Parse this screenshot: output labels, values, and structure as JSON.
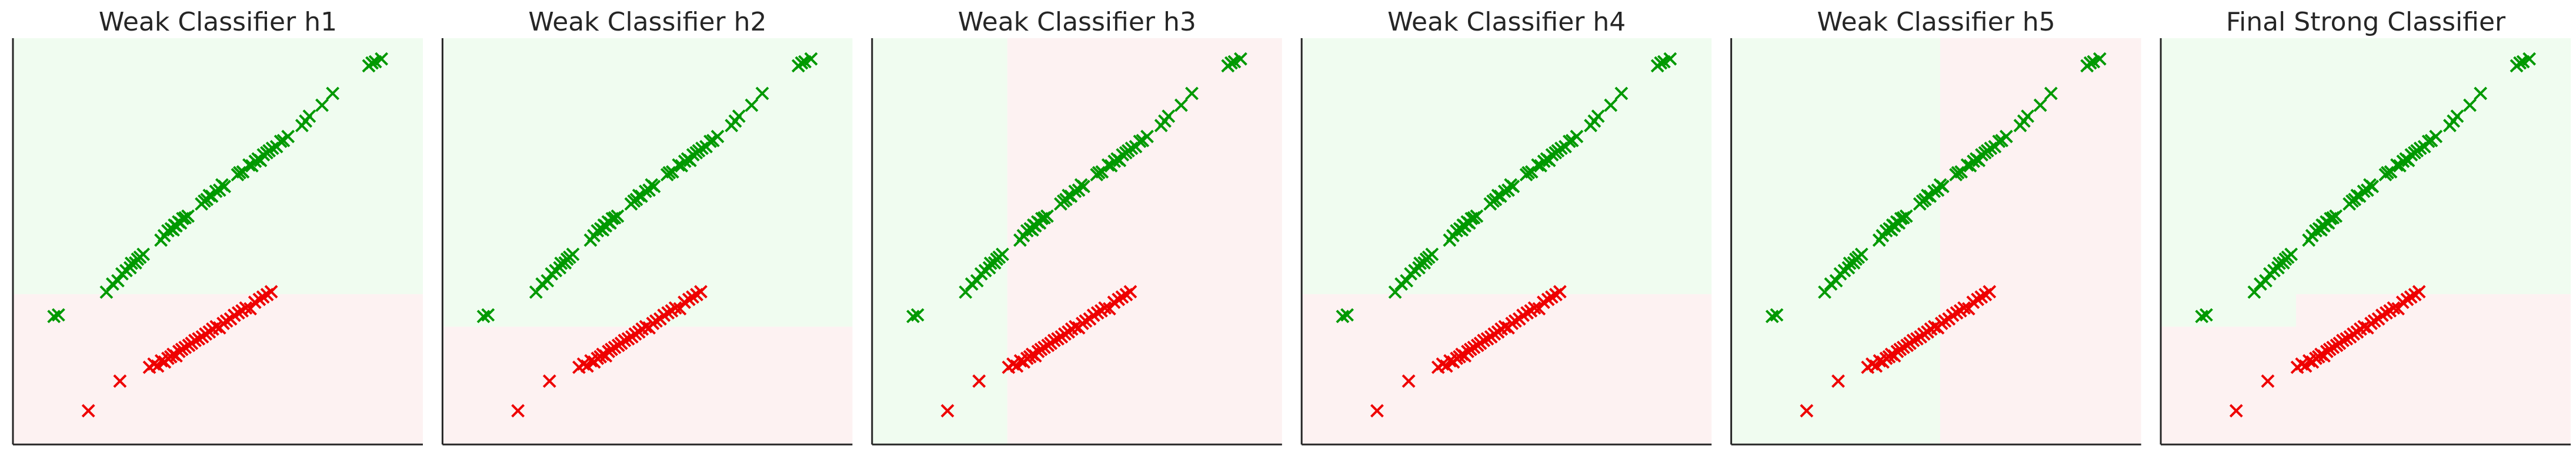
{
  "figure": {
    "panels": [
      {
        "title": "Weak Classifier h1"
      },
      {
        "title": "Weak Classifier h2"
      },
      {
        "title": "Weak Classifier h3"
      },
      {
        "title": "Weak Classifier h4"
      },
      {
        "title": "Weak Classifier h5"
      },
      {
        "title": "Final Strong Classifier"
      }
    ]
  },
  "chart_data": [
    {
      "type": "scatter",
      "title": "Weak Classifier h1",
      "xlabel": "",
      "ylabel": "",
      "xlim": [
        0,
        100
      ],
      "ylim": [
        0,
        100
      ],
      "marker": "x",
      "grid": false,
      "decision_regions": [
        {
          "class": "positive",
          "color": "#f0fcf0",
          "x": [
            0,
            100
          ],
          "y": [
            37,
            100
          ]
        },
        {
          "class": "negative",
          "color": "#fdf2f2",
          "x": [
            0,
            100
          ],
          "y": [
            0,
            37
          ]
        }
      ],
      "series": [
        {
          "color": "#009900",
          "points": "positive"
        },
        {
          "color": "#ee0000",
          "points": "negative"
        }
      ]
    },
    {
      "type": "scatter",
      "title": "Weak Classifier h2",
      "xlabel": "",
      "ylabel": "",
      "xlim": [
        0,
        100
      ],
      "ylim": [
        0,
        100
      ],
      "marker": "x",
      "grid": false,
      "decision_regions": [
        {
          "class": "positive",
          "color": "#f0fcf0",
          "x": [
            0,
            100
          ],
          "y": [
            29,
            100
          ]
        },
        {
          "class": "negative",
          "color": "#fdf2f2",
          "x": [
            0,
            100
          ],
          "y": [
            0,
            29
          ]
        }
      ],
      "series": [
        {
          "color": "#009900",
          "points": "positive"
        },
        {
          "color": "#ee0000",
          "points": "negative"
        }
      ]
    },
    {
      "type": "scatter",
      "title": "Weak Classifier h3",
      "xlabel": "",
      "ylabel": "",
      "xlim": [
        0,
        100
      ],
      "ylim": [
        0,
        100
      ],
      "marker": "x",
      "grid": false,
      "decision_regions": [
        {
          "class": "positive",
          "color": "#f0fcf0",
          "x": [
            0,
            33
          ],
          "y": [
            0,
            100
          ]
        },
        {
          "class": "negative",
          "color": "#fdf2f2",
          "x": [
            33,
            100
          ],
          "y": [
            0,
            100
          ]
        }
      ],
      "series": [
        {
          "color": "#009900",
          "points": "positive"
        },
        {
          "color": "#ee0000",
          "points": "negative"
        }
      ]
    },
    {
      "type": "scatter",
      "title": "Weak Classifier h4",
      "xlabel": "",
      "ylabel": "",
      "xlim": [
        0,
        100
      ],
      "ylim": [
        0,
        100
      ],
      "marker": "x",
      "grid": false,
      "decision_regions": [
        {
          "class": "positive",
          "color": "#f0fcf0",
          "x": [
            0,
            100
          ],
          "y": [
            37,
            100
          ]
        },
        {
          "class": "negative",
          "color": "#fdf2f2",
          "x": [
            0,
            100
          ],
          "y": [
            0,
            37
          ]
        }
      ],
      "series": [
        {
          "color": "#009900",
          "points": "positive"
        },
        {
          "color": "#ee0000",
          "points": "negative"
        }
      ]
    },
    {
      "type": "scatter",
      "title": "Weak Classifier h5",
      "xlabel": "",
      "ylabel": "",
      "xlim": [
        0,
        100
      ],
      "ylim": [
        0,
        100
      ],
      "marker": "x",
      "grid": false,
      "decision_regions": [
        {
          "class": "positive",
          "color": "#f0fcf0",
          "x": [
            0,
            51
          ],
          "y": [
            0,
            100
          ]
        },
        {
          "class": "negative",
          "color": "#fdf2f2",
          "x": [
            51,
            100
          ],
          "y": [
            0,
            100
          ]
        }
      ],
      "series": [
        {
          "color": "#009900",
          "points": "positive"
        },
        {
          "color": "#ee0000",
          "points": "negative"
        }
      ]
    },
    {
      "type": "scatter",
      "title": "Final Strong Classifier",
      "xlabel": "",
      "ylabel": "",
      "xlim": [
        0,
        100
      ],
      "ylim": [
        0,
        100
      ],
      "marker": "x",
      "grid": false,
      "decision_regions": [
        {
          "class": "positive",
          "color": "#f0fcf0",
          "x": [
            0,
            100
          ],
          "y": [
            37,
            100
          ]
        },
        {
          "class": "positive",
          "color": "#f0fcf0",
          "x": [
            0,
            33
          ],
          "y": [
            29,
            37
          ]
        },
        {
          "class": "negative",
          "color": "#fdf2f2",
          "x": [
            33,
            100
          ],
          "y": [
            0,
            37
          ]
        },
        {
          "class": "negative",
          "color": "#fdf2f2",
          "x": [
            0,
            33
          ],
          "y": [
            0,
            29
          ]
        }
      ],
      "series": [
        {
          "color": "#009900",
          "points": "positive"
        },
        {
          "color": "#ee0000",
          "points": "negative"
        }
      ]
    }
  ],
  "points": {
    "positive": [
      [
        10.0,
        31.5
      ],
      [
        11.1,
        31.9
      ],
      [
        22.8,
        37.5
      ],
      [
        24.3,
        39.5
      ],
      [
        25.6,
        40.3
      ],
      [
        26.6,
        42.0
      ],
      [
        27.6,
        42.8
      ],
      [
        28.6,
        43.5
      ],
      [
        28.9,
        44.6
      ],
      [
        29.9,
        44.7
      ],
      [
        30.4,
        45.6
      ],
      [
        31.0,
        46.1
      ],
      [
        31.8,
        46.8
      ],
      [
        36.1,
        50.3
      ],
      [
        36.9,
        51.4
      ],
      [
        37.8,
        52.6
      ],
      [
        38.6,
        53.1
      ],
      [
        39.1,
        52.8
      ],
      [
        39.4,
        54.0
      ],
      [
        39.8,
        53.8
      ],
      [
        40.4,
        54.8
      ],
      [
        40.9,
        54.5
      ],
      [
        41.4,
        55.6
      ],
      [
        42.0,
        55.8
      ],
      [
        42.7,
        56.2
      ],
      [
        46.0,
        59.2
      ],
      [
        46.7,
        59.9
      ],
      [
        47.3,
        60.3
      ],
      [
        47.9,
        61.3
      ],
      [
        48.5,
        61.1
      ],
      [
        49.5,
        62.3
      ],
      [
        50.4,
        62.6
      ],
      [
        51.0,
        63.9
      ],
      [
        51.6,
        63.5
      ],
      [
        54.8,
        66.4
      ],
      [
        55.3,
        66.9
      ],
      [
        56.1,
        67.1
      ],
      [
        57.6,
        68.8
      ],
      [
        58.3,
        68.6
      ],
      [
        59.1,
        69.7
      ],
      [
        59.8,
        70.3
      ],
      [
        60.4,
        69.9
      ],
      [
        61.1,
        71.3
      ],
      [
        61.9,
        71.8
      ],
      [
        62.5,
        72.3
      ],
      [
        63.3,
        72.9
      ],
      [
        64.3,
        73.3
      ],
      [
        65.3,
        74.6
      ],
      [
        66.0,
        74.8
      ],
      [
        67.1,
        75.8
      ],
      [
        70.5,
        78.5
      ],
      [
        71.4,
        79.6
      ],
      [
        72.3,
        80.8
      ],
      [
        75.4,
        83.5
      ],
      [
        78.0,
        86.4
      ],
      [
        86.8,
        93.2
      ],
      [
        87.6,
        93.9
      ],
      [
        88.4,
        94.2
      ],
      [
        89.9,
        94.9
      ]
    ],
    "negative": [
      [
        18.4,
        8.3
      ],
      [
        26.1,
        15.6
      ],
      [
        33.3,
        19.0
      ],
      [
        34.4,
        19.8
      ],
      [
        35.3,
        19.3
      ],
      [
        36.2,
        20.6
      ],
      [
        37.0,
        20.3
      ],
      [
        37.8,
        21.2
      ],
      [
        38.5,
        21.6
      ],
      [
        39.1,
        22.2
      ],
      [
        39.8,
        21.8
      ],
      [
        40.5,
        22.9
      ],
      [
        41.2,
        23.4
      ],
      [
        42.0,
        23.9
      ],
      [
        42.9,
        24.4
      ],
      [
        43.6,
        24.9
      ],
      [
        44.4,
        25.6
      ],
      [
        45.3,
        26.0
      ],
      [
        46.2,
        26.5
      ],
      [
        47.0,
        27.2
      ],
      [
        47.9,
        27.7
      ],
      [
        48.7,
        28.4
      ],
      [
        49.6,
        29.0
      ],
      [
        50.4,
        28.7
      ],
      [
        51.3,
        29.8
      ],
      [
        52.1,
        30.4
      ],
      [
        53.1,
        30.9
      ],
      [
        54.0,
        31.8
      ],
      [
        55.0,
        32.4
      ],
      [
        55.9,
        32.9
      ],
      [
        56.8,
        33.6
      ],
      [
        57.9,
        33.4
      ],
      [
        59.0,
        35.0
      ],
      [
        60.1,
        35.7
      ],
      [
        61.0,
        36.3
      ],
      [
        62.0,
        36.9
      ],
      [
        63.0,
        37.6
      ]
    ]
  }
}
